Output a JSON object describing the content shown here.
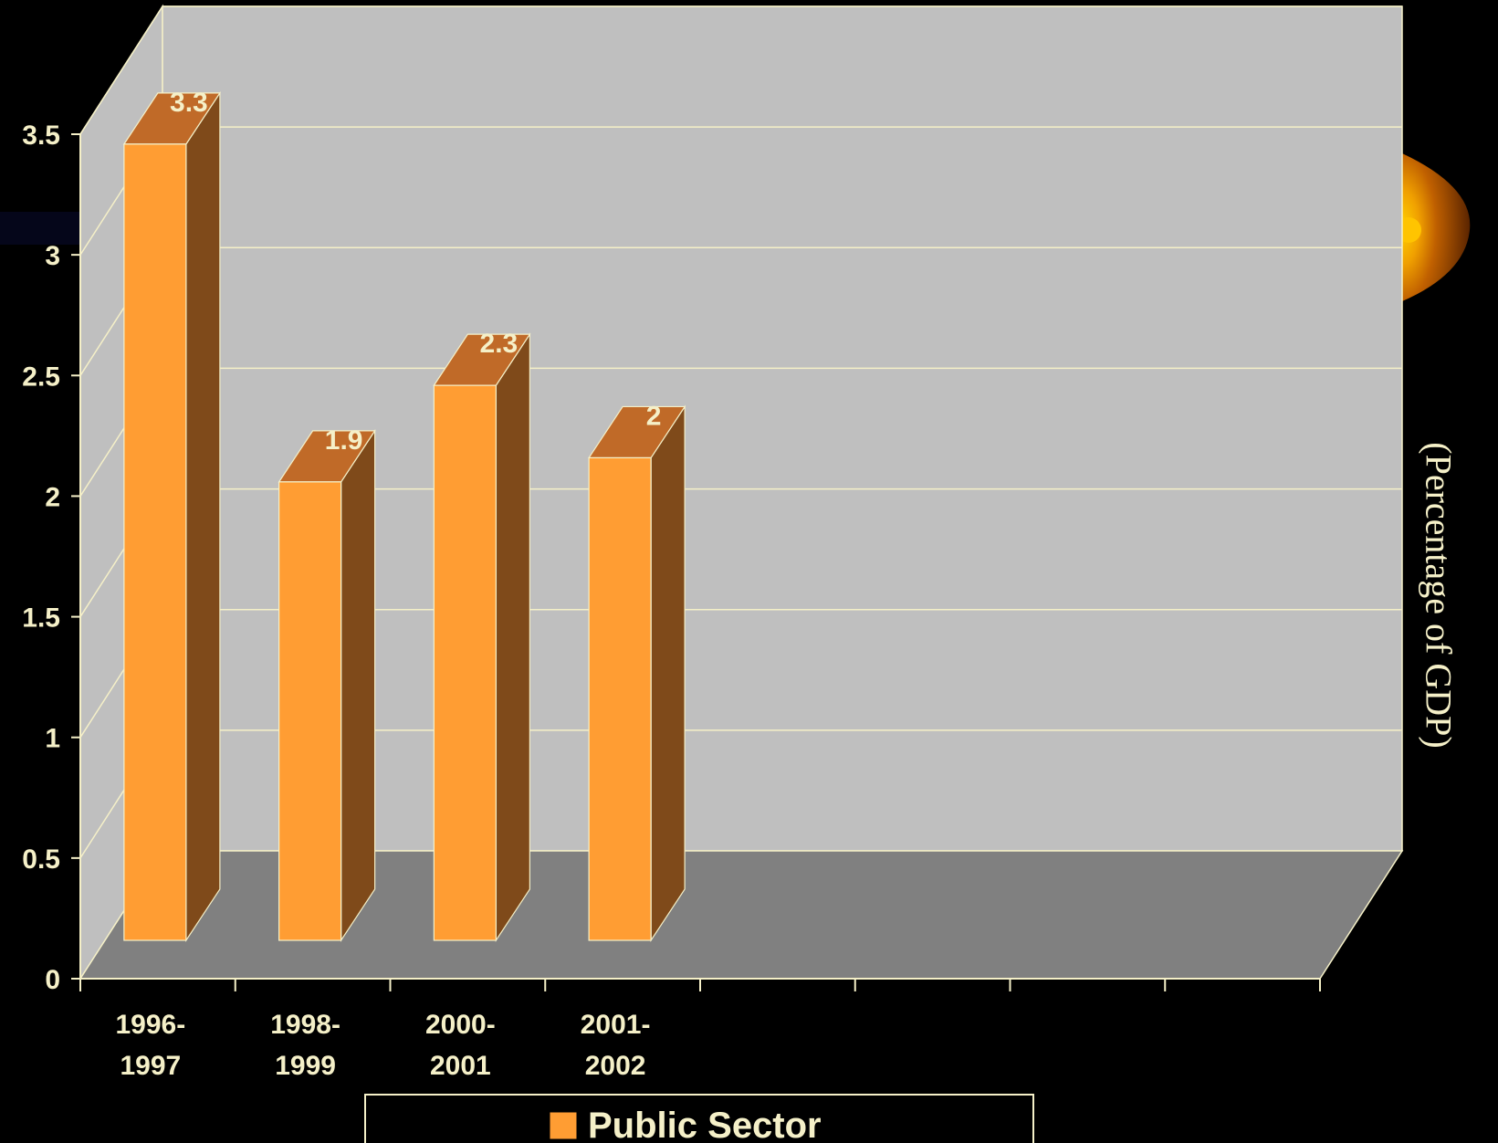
{
  "chart_data": {
    "type": "bar",
    "categories": [
      [
        "1996-",
        "1997"
      ],
      [
        "1998-",
        "1999"
      ],
      [
        "2000-",
        "2001"
      ],
      [
        "2001-",
        "2002"
      ]
    ],
    "series": [
      {
        "name": "Public Sector",
        "values": [
          3.3,
          1.9,
          2.3,
          2.0
        ]
      }
    ],
    "data_labels": [
      "3.3",
      "1.9",
      "2.3",
      "2"
    ],
    "y_ticks": [
      "0",
      "0.5",
      "1",
      "1.5",
      "2",
      "2.5",
      "3",
      "3.5"
    ],
    "ylim": [
      0,
      3.5
    ],
    "ylabel": "(Percentage of GDP)",
    "legend": {
      "position": "bottom",
      "label": "Public Sector"
    },
    "grid": true,
    "colors": {
      "bar_front": "#ff9d33",
      "bar_side": "#7f4a1a",
      "bar_top": "#c06a28",
      "wall": "#bfbfbf",
      "floor": "#808080",
      "text": "#f5f0c8",
      "background": "#000000"
    }
  }
}
